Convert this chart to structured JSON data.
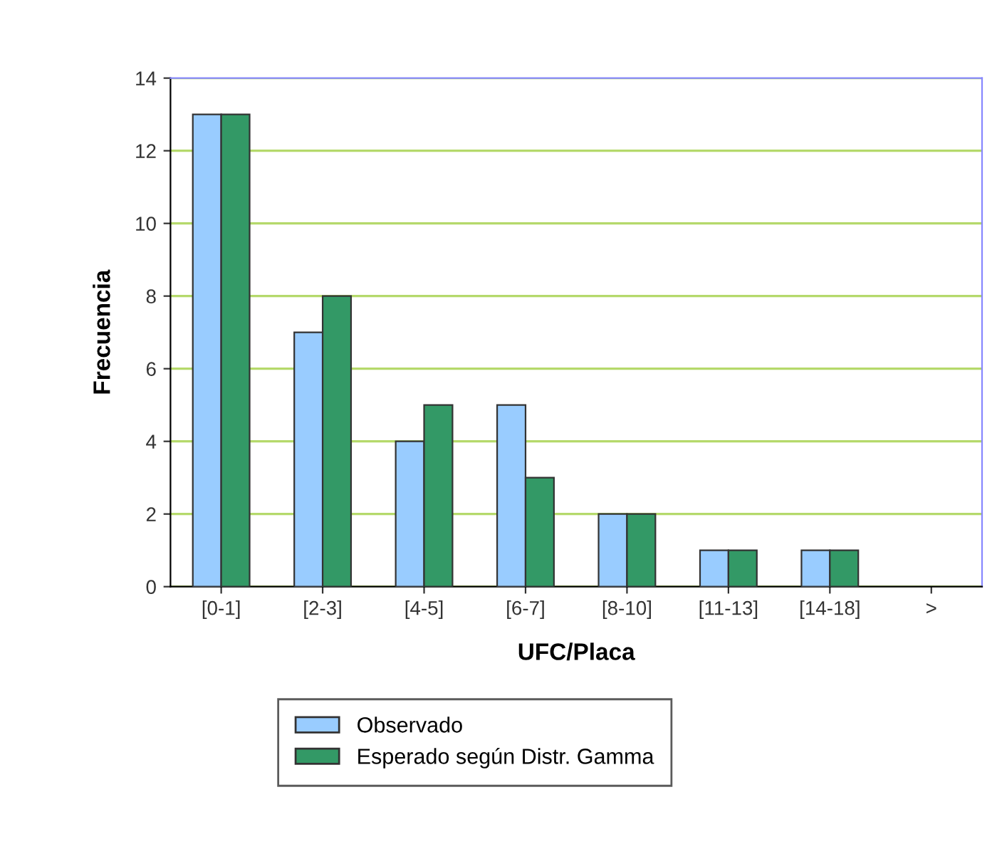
{
  "chart_data": {
    "type": "bar",
    "xlabel": "UFC/Placa",
    "ylabel": "Frecuencia",
    "categories": [
      "[0-1]",
      "[2-3]",
      "[4-5]",
      "[6-7]",
      "[8-10]",
      "[11-13]",
      "[14-18]",
      ">"
    ],
    "series": [
      {
        "name": "Observado",
        "color": "#99ccff",
        "values": [
          13,
          7,
          4,
          5,
          2,
          1,
          1,
          0
        ]
      },
      {
        "name": "Esperado según Distr. Gamma",
        "color": "#339966",
        "values": [
          13,
          8,
          5,
          3,
          2,
          1,
          1,
          0
        ]
      }
    ],
    "ylim": [
      0,
      14
    ],
    "yticks": [
      0,
      2,
      4,
      6,
      8,
      10,
      12,
      14
    ],
    "grid": "y",
    "legend": "bottom"
  }
}
